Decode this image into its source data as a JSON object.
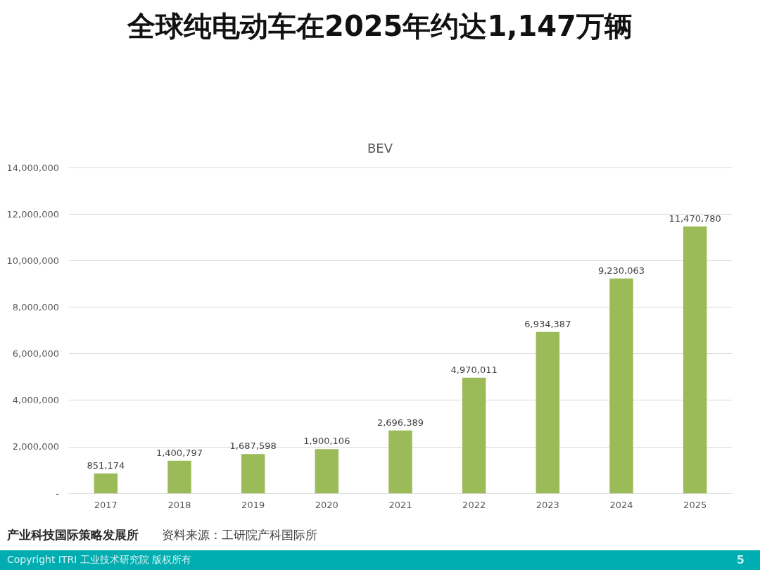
{
  "chart_data": {
    "type": "bar",
    "title": "全球纯电动车在2025年约达1,147万辆",
    "subtitle": "BEV",
    "categories": [
      "2017",
      "2018",
      "2019",
      "2020",
      "2021",
      "2022",
      "2023",
      "2024",
      "2025"
    ],
    "values": [
      851174,
      1400797,
      1687598,
      1900106,
      2696389,
      4970011,
      6934387,
      9230063,
      11470780
    ],
    "value_labels": [
      "851,174",
      "1,400,797",
      "1,687,598",
      "1,900,106",
      "2,696,389",
      "4,970,011",
      "6,934,387",
      "9,230,063",
      "11,470,780"
    ],
    "color": "#9bbb59",
    "ylim": [
      0,
      14000000
    ],
    "yticks": [
      {
        "value": 0,
        "label": "-"
      },
      {
        "value": 2000000,
        "label": "2,000,000"
      },
      {
        "value": 4000000,
        "label": "4,000,000"
      },
      {
        "value": 6000000,
        "label": "6,000,000"
      },
      {
        "value": 8000000,
        "label": "8,000,000"
      },
      {
        "value": 10000000,
        "label": "10,000,000"
      },
      {
        "value": 12000000,
        "label": "12,000,000"
      },
      {
        "value": 14000000,
        "label": "14,000,000"
      }
    ],
    "grid": "y",
    "annotations": [
      "产业科技国际策略发展所",
      "资料来源：工研院产科国际所",
      "Copyright ITRI 工业技术研究院 版权所有",
      "5"
    ]
  }
}
